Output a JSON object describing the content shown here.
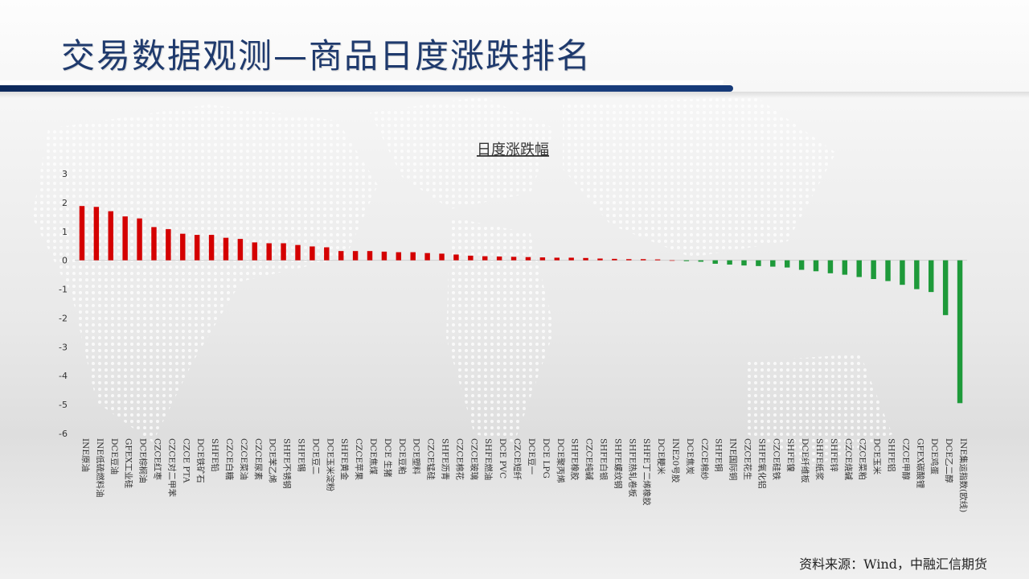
{
  "page": {
    "title": "交易数据观测—商品日度涨跌排名",
    "source": "资料来源：Wind，中融汇信期货"
  },
  "colors": {
    "up": "#d40000",
    "down": "#1e9a3a",
    "title": "#1f3a6d",
    "axis": "#333333"
  },
  "chart_data": {
    "type": "bar",
    "title": "日度涨跌幅",
    "ylim": [
      -6,
      3
    ],
    "yticks": [
      3,
      2,
      1,
      0,
      -1,
      -2,
      -3,
      -4,
      -5,
      -6
    ],
    "grid": false,
    "legend": "none",
    "categories": [
      "INE原油",
      "INE低硫燃料油",
      "DCE豆油",
      "GFEX工业硅",
      "DCE棕榈油",
      "CZCE红枣",
      "CZCE对二甲苯",
      "CZCE PTA",
      "DCE铁矿石",
      "SHFE铅",
      "CZCE白糖",
      "CZCE菜油",
      "CZCE尿素",
      "DCE苯乙烯",
      "SHFE不锈钢",
      "SHFE锡",
      "DCE豆二",
      "DCE玉米淀粉",
      "SHFE黄金",
      "CZCE苹果",
      "DCE焦煤",
      "DCE 生猪",
      "DCE豆粕",
      "DCE塑料",
      "CZCE锰硅",
      "SHFE沥青",
      "CZCE棉花",
      "CZCE玻璃",
      "SHFE燃油",
      "DCE PVC",
      "CZCE短纤",
      "DCE豆一",
      "DCE LPG",
      "DCE聚丙烯",
      "SHFE橡胶",
      "CZCE纯碱",
      "SHFE白银",
      "SHFE螺纹钢",
      "SHFE热轧卷板",
      "SHFE丁二烯橡胶",
      "DCE粳米",
      "INE20号胶",
      "DCE焦炭",
      "CZCE棉纱",
      "SHFE铜",
      "INE国际铜",
      "CZCE花生",
      "SHFE氧化铝",
      "CZCE硅铁",
      "SHFE镍",
      "DCE纤维板",
      "SHFE纸浆",
      "SHFE锌",
      "CZCE烧碱",
      "CZCE菜粕",
      "DCE玉米",
      "SHFE铝",
      "CZCE甲醇",
      "GFEX碳酸锂",
      "DCE鸡蛋",
      "DCE乙二醇",
      "INE集运指数(欧线)"
    ],
    "values": [
      1.88,
      1.85,
      1.7,
      1.52,
      1.45,
      1.15,
      1.08,
      0.92,
      0.88,
      0.88,
      0.78,
      0.74,
      0.62,
      0.59,
      0.59,
      0.53,
      0.48,
      0.45,
      0.32,
      0.32,
      0.32,
      0.3,
      0.28,
      0.28,
      0.25,
      0.23,
      0.2,
      0.16,
      0.14,
      0.13,
      0.12,
      0.11,
      0.1,
      0.09,
      0.09,
      0.08,
      0.06,
      0.05,
      0.04,
      0.04,
      0.03,
      0.0,
      -0.03,
      -0.05,
      -0.12,
      -0.15,
      -0.18,
      -0.2,
      -0.22,
      -0.25,
      -0.33,
      -0.38,
      -0.45,
      -0.5,
      -0.58,
      -0.65,
      -0.72,
      -0.85,
      -1.0,
      -1.1,
      -1.9,
      -4.95
    ]
  }
}
